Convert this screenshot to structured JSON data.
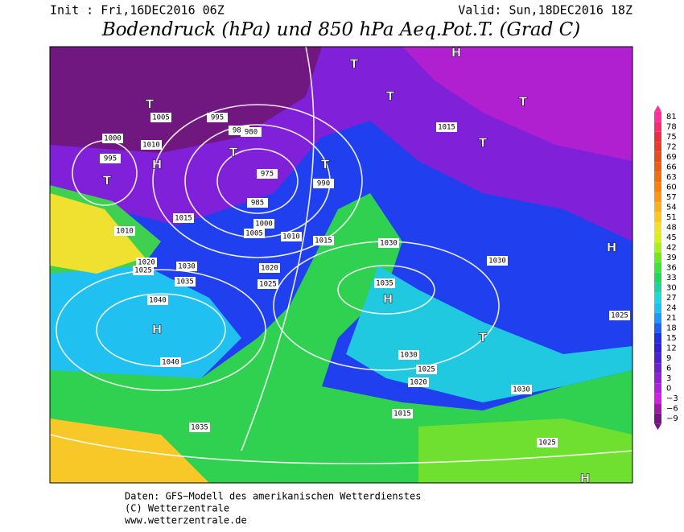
{
  "header": {
    "init": "Init : Fri,16DEC2016 06Z",
    "valid": "Valid: Sun,18DEC2016 18Z",
    "title": "Bodendruck (hPa) und 850 hPa Aeq.Pot.T. (Grad C)"
  },
  "colorbar": {
    "labels": [
      "81",
      "78",
      "75",
      "72",
      "69",
      "66",
      "63",
      "60",
      "57",
      "54",
      "51",
      "48",
      "45",
      "42",
      "39",
      "36",
      "33",
      "30",
      "27",
      "24",
      "21",
      "18",
      "15",
      "12",
      "9",
      "6",
      "3",
      "0",
      "−3",
      "−6",
      "−9"
    ],
    "colors": [
      "#ff2fa0",
      "#f03070",
      "#e83040",
      "#e0402c",
      "#e05020",
      "#e86018",
      "#f07010",
      "#f88010",
      "#f89818",
      "#f8b020",
      "#f8c828",
      "#f0e030",
      "#d8f020",
      "#a8f020",
      "#70e820",
      "#40e040",
      "#20d860",
      "#20d0a0",
      "#20d8d8",
      "#20c0f0",
      "#2098f8",
      "#2060f0",
      "#2030e0",
      "#3020d0",
      "#5020c8",
      "#7020c8",
      "#9020d0",
      "#b020d8",
      "#d020e0",
      "#a018a8",
      "#701880"
    ]
  },
  "map": {
    "labels": [
      "1005",
      "1000",
      "995",
      "1010",
      "1015",
      "1020",
      "1025",
      "1030",
      "1035",
      "1040",
      "1005",
      "995",
      "985",
      "980",
      "975",
      "985",
      "990",
      "1000",
      "1010",
      "1015",
      "1020",
      "1025",
      "1030",
      "1035",
      "1040",
      "1030",
      "1025",
      "1020",
      "1015",
      "1025",
      "1030",
      "1035",
      "1010",
      "1015",
      "1030",
      "1025"
    ],
    "symbols": [
      "T",
      "T",
      "T",
      "T",
      "T",
      "H",
      "H",
      "H",
      "H",
      "T",
      "T",
      "T",
      "H",
      "T",
      "H"
    ]
  },
  "footer": {
    "line1": "Daten: GFS−Modell des amerikanischen Wetterdienstes",
    "line2": "(C) Wetterzentrale",
    "line3": "www.wetterzentrale.de"
  }
}
